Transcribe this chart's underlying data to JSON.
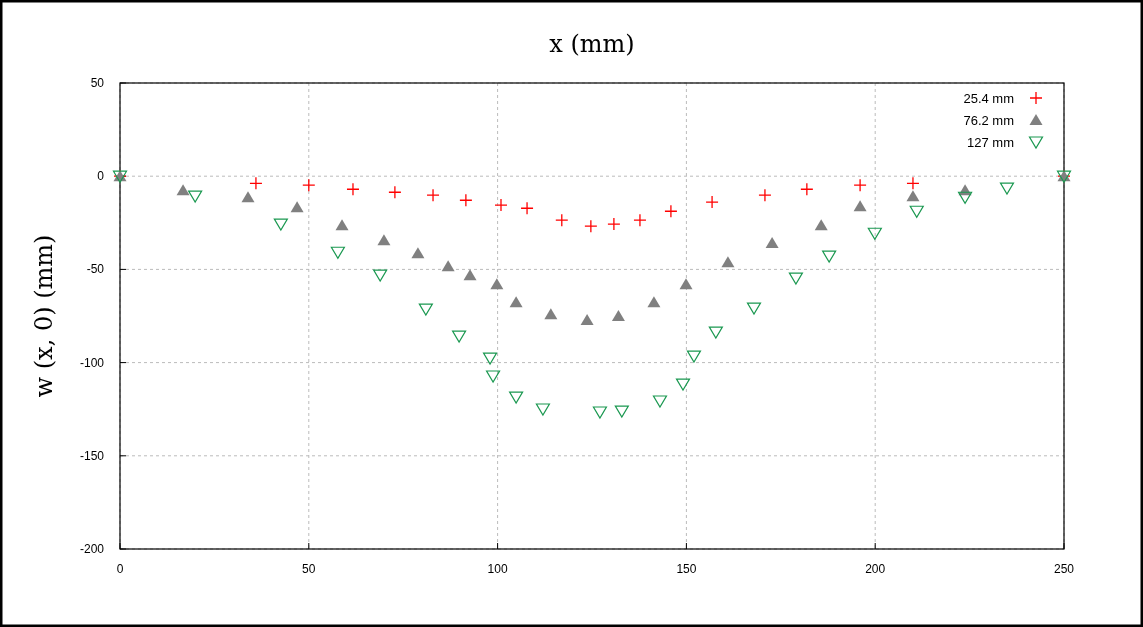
{
  "chart_data": {
    "type": "scatter",
    "title": "x (mm)",
    "ylabel": "w (x, 0) (mm)",
    "xlim": [
      0,
      250
    ],
    "xticks": [
      0,
      50,
      100,
      150,
      200,
      250
    ],
    "ylim": [
      -200,
      50
    ],
    "yticks": [
      -200,
      -150,
      -100,
      -50,
      0,
      50
    ],
    "grid": true,
    "legend": "top right",
    "series": [
      {
        "name": "25.4 mm",
        "color": "#ff0000",
        "marker": "cross",
        "x": [
          0,
          36,
          50,
          61.7,
          72.8,
          82.9,
          91.6,
          100.9,
          107.8,
          117,
          124.7,
          130.8,
          137.7,
          145.9,
          156.8,
          170.8,
          181.9,
          196,
          210,
          250
        ],
        "values": [
          0,
          -3.8,
          -4.8,
          -7,
          -8.6,
          -10.2,
          -12.9,
          -15.5,
          -17.2,
          -23.6,
          -26.8,
          -25.7,
          -23.6,
          -18.8,
          -13.9,
          -10.2,
          -7,
          -4.8,
          -3.8,
          0
        ]
      },
      {
        "name": "76.2 mm",
        "color": "#808080",
        "marker": "triangle",
        "x": [
          0,
          16.7,
          33.9,
          46.9,
          58.8,
          69.9,
          78.9,
          86.9,
          92.7,
          99.8,
          104.9,
          114.1,
          123.7,
          132,
          141.4,
          149.9,
          161,
          172.7,
          185.7,
          196,
          210,
          223.8,
          250
        ],
        "values": [
          0,
          -7.5,
          -11.3,
          -16.6,
          -26.3,
          -34.3,
          -41.3,
          -48.3,
          -53.1,
          -57.9,
          -67.6,
          -74,
          -77.2,
          -75,
          -67.6,
          -57.9,
          -46.1,
          -35.9,
          -26.3,
          -16.1,
          -10.7,
          -7.5,
          0
        ]
      },
      {
        "name": "127 mm",
        "color": "#1a9850",
        "marker": "triangle-down",
        "x": [
          0,
          19.9,
          42.6,
          57.7,
          68.9,
          81,
          89.8,
          98,
          98.8,
          104.9,
          112,
          127.1,
          132.9,
          143,
          149.1,
          152,
          157.8,
          167.9,
          179,
          187.8,
          199.9,
          211,
          223.8,
          234.9,
          250
        ],
        "values": [
          0,
          -10.7,
          -25.7,
          -40.8,
          -53.1,
          -71.3,
          -85.8,
          -97.6,
          -107.2,
          -118.5,
          -124.9,
          -126.5,
          -126,
          -120.6,
          -111.5,
          -96.5,
          -83.6,
          -70.8,
          -54.7,
          -42.9,
          -30.6,
          -18.8,
          -11.3,
          -6.4,
          0
        ]
      }
    ]
  }
}
